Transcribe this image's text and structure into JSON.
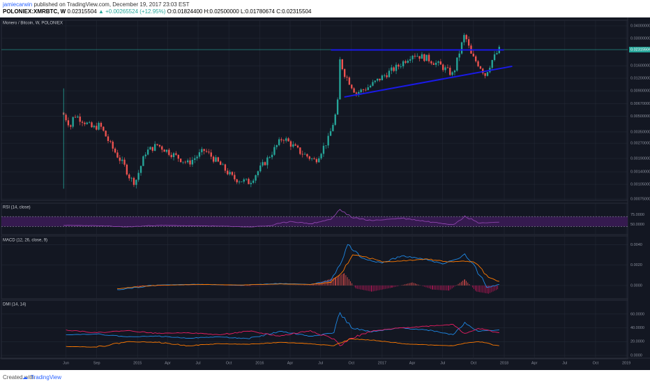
{
  "header": {
    "author": "jamiecarwin",
    "published": "published on TradingView.com, December 19, 2017 23:03 EST",
    "symbol": "POLONIEX:XMRBTC, W",
    "last": "0.02315504",
    "change": "▲ +0.00265524 (+12.95%)",
    "ohlc": "O:0.01824400 H:0.02500000 L:0.01780674 C:0.02315504"
  },
  "footer": {
    "created_with": "Created with",
    "brand": "TradingView"
  },
  "colors": {
    "background": "#131722",
    "grid": "#232835",
    "up": "#26a69a",
    "down": "#ef5350",
    "trendline": "#1a1ae8",
    "rsi_line": "#8e44ad",
    "rsi_band": "#3a1b54",
    "macd_line": "#1e88e5",
    "signal_line": "#ff7a00",
    "hist_neg": "#c2185b",
    "dmi_plus": "#1e88e5",
    "dmi_minus": "#e91e63",
    "adx": "#ff7a00"
  },
  "chart_data": [
    {
      "type": "candlestick",
      "title": "Monero / Bitcoin, W, POLONIEX",
      "scale": "log",
      "ylim": [
        0.00075,
        0.04
      ],
      "y_ticks": [
        "0.04000000",
        "0.03000000",
        "0.02315504",
        "0.01600000",
        "0.01200000",
        "0.00900000",
        "0.00670000",
        "0.00500000",
        "0.00350000",
        "0.00270000",
        "0.00190000",
        "0.00140000",
        "0.00105000",
        "0.00075000"
      ],
      "x_ticks": [
        "Jun",
        "Sep",
        "2015",
        "Apr",
        "Jul",
        "Oct",
        "2016",
        "Apr",
        "Jul",
        "Oct",
        "2017",
        "Apr",
        "Jul",
        "Oct",
        "2018",
        "Apr",
        "Jul",
        "Oct",
        "2019"
      ],
      "last_price": "0.02315504",
      "price_path": [
        {
          "date": "2014-05-25",
          "close": 0.0052
        },
        {
          "date": "2014-06-15",
          "close": 0.004
        },
        {
          "date": "2014-06-25",
          "close": 0.0052
        },
        {
          "date": "2014-07-20",
          "close": 0.0046
        },
        {
          "date": "2014-08-20",
          "close": 0.0038
        },
        {
          "date": "2014-09-10",
          "close": 0.0041
        },
        {
          "date": "2014-10-15",
          "close": 0.0025
        },
        {
          "date": "2014-11-25",
          "close": 0.00155
        },
        {
          "date": "2014-12-10",
          "close": 0.0012
        },
        {
          "date": "2014-12-25",
          "close": 0.0011
        },
        {
          "date": "2015-01-25",
          "close": 0.0022
        },
        {
          "date": "2015-03-01",
          "close": 0.0026
        },
        {
          "date": "2015-04-15",
          "close": 0.0021
        },
        {
          "date": "2015-06-01",
          "close": 0.0017
        },
        {
          "date": "2015-07-20",
          "close": 0.0023
        },
        {
          "date": "2015-09-01",
          "close": 0.0017
        },
        {
          "date": "2015-10-15",
          "close": 0.0012
        },
        {
          "date": "2015-12-01",
          "close": 0.0011
        },
        {
          "date": "2016-01-20",
          "close": 0.0018
        },
        {
          "date": "2016-03-10",
          "close": 0.0031
        },
        {
          "date": "2016-05-01",
          "close": 0.0022
        },
        {
          "date": "2016-06-15",
          "close": 0.0018
        },
        {
          "date": "2016-07-25",
          "close": 0.003
        },
        {
          "date": "2016-08-20",
          "close": 0.006
        },
        {
          "date": "2016-08-28",
          "close": 0.018
        },
        {
          "date": "2016-09-10",
          "close": 0.0135
        },
        {
          "date": "2016-10-15",
          "close": 0.0085
        },
        {
          "date": "2016-11-25",
          "close": 0.01
        },
        {
          "date": "2017-01-10",
          "close": 0.013
        },
        {
          "date": "2017-02-20",
          "close": 0.016
        },
        {
          "date": "2017-04-01",
          "close": 0.021
        },
        {
          "date": "2017-05-15",
          "close": 0.019
        },
        {
          "date": "2017-06-25",
          "close": 0.016
        },
        {
          "date": "2017-08-01",
          "close": 0.013
        },
        {
          "date": "2017-08-25",
          "close": 0.025
        },
        {
          "date": "2017-09-05",
          "close": 0.033
        },
        {
          "date": "2017-09-25",
          "close": 0.02
        },
        {
          "date": "2017-10-20",
          "close": 0.016
        },
        {
          "date": "2017-11-05",
          "close": 0.013
        },
        {
          "date": "2017-11-25",
          "close": 0.018
        },
        {
          "date": "2017-12-17",
          "close": 0.02315
        }
      ],
      "lines": [
        {
          "from": {
            "date": "2016-08-01",
            "price": 0.023
          },
          "to": {
            "date": "2017-12-31",
            "price": 0.023
          }
        },
        {
          "from": {
            "date": "2016-09-10",
            "price": 0.0078
          },
          "to": {
            "date": "2018-01-25",
            "price": 0.0158
          }
        }
      ]
    },
    {
      "type": "line",
      "title": "RSI (14, close)",
      "ylim": [
        30,
        95
      ],
      "y_ticks": [
        "75.0000",
        "50.0000"
      ],
      "bands": [
        45,
        70
      ],
      "x": [
        "2014-05-25",
        "2014-09-01",
        "2014-12-01",
        "2015-03-01",
        "2015-06-01",
        "2015-09-01",
        "2015-12-01",
        "2016-02-01",
        "2016-04-01",
        "2016-06-01",
        "2016-08-01",
        "2016-08-28",
        "2016-10-01",
        "2016-12-01",
        "2017-03-01",
        "2017-06-01",
        "2017-08-01",
        "2017-09-05",
        "2017-10-15",
        "2017-12-17"
      ],
      "values": [
        48,
        47,
        44,
        48,
        47,
        46,
        44,
        47,
        58,
        52,
        63,
        88,
        68,
        60,
        66,
        56,
        50,
        72,
        54,
        56
      ]
    },
    {
      "type": "line",
      "title": "MACD (12, 26, close, 9)",
      "ylim": [
        -0.0011,
        0.0045
      ],
      "y_ticks": [
        "0.0040",
        "0.0020",
        "0.0000"
      ],
      "series": [
        {
          "name": "",
          "x": [
            "2014-11-01",
            "2015-03-01",
            "2015-07-01",
            "2015-11-01",
            "2016-03-01",
            "2016-06-01",
            "2016-08-01",
            "2016-08-28",
            "2016-09-20",
            "2016-11-01",
            "2017-01-01",
            "2017-03-01",
            "2017-05-01",
            "2017-07-01",
            "2017-08-15",
            "2017-09-05",
            "2017-10-01",
            "2017-11-10",
            "2017-12-17"
          ],
          "values": [
            -0.0004,
            5e-05,
            0.00012,
            2e-05,
            0.0002,
            0.0001,
            0.0005,
            0.002,
            0.004,
            0.0027,
            0.0022,
            0.0029,
            0.0026,
            0.0021,
            0.0026,
            0.0031,
            0.0021,
            -0.0002,
            0.0001
          ]
        },
        {
          "name": "",
          "x": [
            "2014-11-01",
            "2015-03-01",
            "2015-07-01",
            "2015-11-01",
            "2016-03-01",
            "2016-06-01",
            "2016-08-01",
            "2016-09-01",
            "2016-10-05",
            "2016-11-15",
            "2017-01-01",
            "2017-03-01",
            "2017-05-15",
            "2017-07-15",
            "2017-09-01",
            "2017-10-01",
            "2017-11-15",
            "2017-12-17"
          ],
          "values": [
            -0.0003,
            2e-05,
            0.0001,
            5e-05,
            0.00015,
            0.0001,
            0.0003,
            0.0012,
            0.003,
            0.0028,
            0.0023,
            0.0024,
            0.0026,
            0.0023,
            0.0024,
            0.0023,
            0.0008,
            0.0004
          ]
        }
      ],
      "histogram": {
        "x": [
          "2015-01-01",
          "2015-06-01",
          "2015-12-01",
          "2016-06-01",
          "2016-08-15",
          "2016-09-10",
          "2016-10-15",
          "2016-12-01",
          "2017-02-01",
          "2017-04-01",
          "2017-06-01",
          "2017-07-20",
          "2017-09-05",
          "2017-10-10",
          "2017-11-15",
          "2017-12-17"
        ],
        "values": [
          -0.0001,
          3e-05,
          -5e-05,
          5e-05,
          0.0008,
          0.0012,
          -0.0003,
          -0.0006,
          -0.0002,
          0.0003,
          -0.0004,
          -0.0005,
          0.0006,
          -0.0006,
          -0.0008,
          -0.0003
        ]
      }
    },
    {
      "type": "line",
      "title": "DMI (14, 14)",
      "ylim": [
        -2,
        75
      ],
      "y_ticks": [
        "60.0000",
        "40.0000",
        "20.0000",
        "0.0000"
      ],
      "series": [
        {
          "name": "",
          "x": [
            "2014-06-01",
            "2014-09-01",
            "2014-12-01",
            "2015-03-01",
            "2015-06-01",
            "2015-09-01",
            "2015-12-01",
            "2016-03-01",
            "2016-06-01",
            "2016-08-10",
            "2016-08-28",
            "2016-10-01",
            "2016-12-01",
            "2017-03-01",
            "2017-06-01",
            "2017-08-01",
            "2017-09-05",
            "2017-10-15",
            "2017-12-17"
          ],
          "values": [
            30,
            31,
            27,
            28,
            25,
            27,
            24,
            35,
            28,
            33,
            62,
            40,
            34,
            40,
            36,
            30,
            48,
            35,
            37
          ]
        },
        {
          "name": "",
          "x": [
            "2014-06-01",
            "2014-09-01",
            "2014-12-01",
            "2015-03-01",
            "2015-06-01",
            "2015-09-01",
            "2015-12-01",
            "2016-03-01",
            "2016-06-01",
            "2016-08-10",
            "2016-08-28",
            "2016-10-01",
            "2016-12-01",
            "2017-03-01",
            "2017-06-01",
            "2017-08-01",
            "2017-09-05",
            "2017-10-15",
            "2017-12-17"
          ],
          "values": [
            37,
            33,
            36,
            32,
            33,
            30,
            35,
            28,
            36,
            24,
            14,
            25,
            35,
            40,
            43,
            45,
            32,
            39,
            33
          ]
        },
        {
          "name": "",
          "x": [
            "2014-06-01",
            "2014-09-01",
            "2014-12-01",
            "2015-03-01",
            "2015-06-01",
            "2015-09-01",
            "2015-12-01",
            "2016-03-01",
            "2016-06-01",
            "2016-08-10",
            "2016-08-28",
            "2016-10-01",
            "2016-12-01",
            "2017-03-01",
            "2017-06-01",
            "2017-08-01",
            "2017-09-05",
            "2017-10-15",
            "2017-12-17"
          ],
          "values": [
            13,
            12,
            20,
            19,
            14,
            17,
            16,
            19,
            17,
            14,
            18,
            24,
            22,
            17,
            15,
            14,
            18,
            20,
            14
          ]
        }
      ]
    }
  ]
}
